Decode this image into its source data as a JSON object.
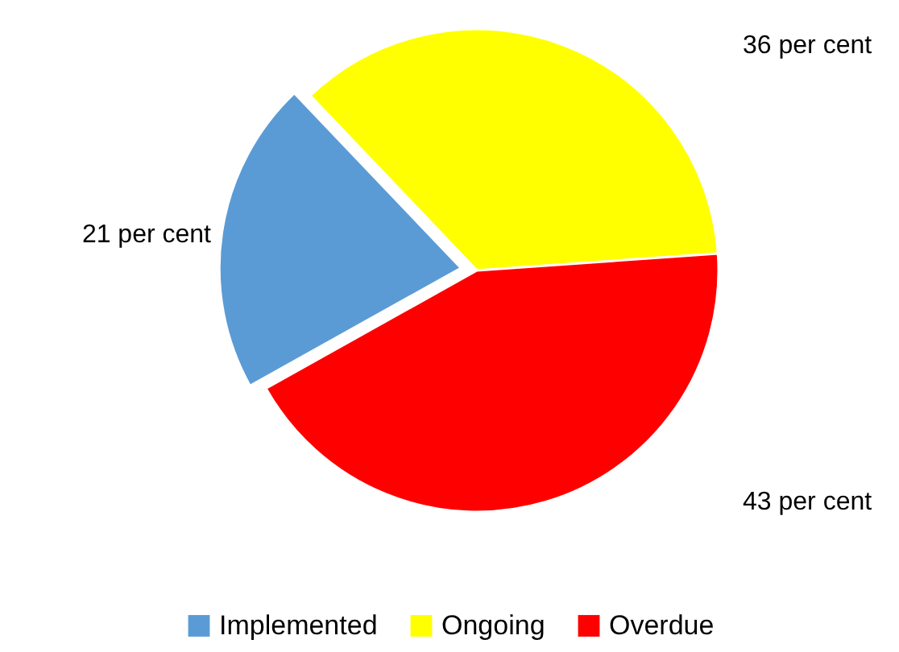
{
  "chart_data": {
    "type": "pie",
    "categories": [
      "Implemented",
      "Ongoing",
      "Overdue"
    ],
    "values": [
      21,
      36,
      43
    ],
    "colors": [
      "#5b9bd5",
      "#ffff00",
      "#ff0000"
    ],
    "value_labels": [
      "21 per cent",
      "36 per cent",
      "43 per cent"
    ],
    "legend": "bottom"
  }
}
